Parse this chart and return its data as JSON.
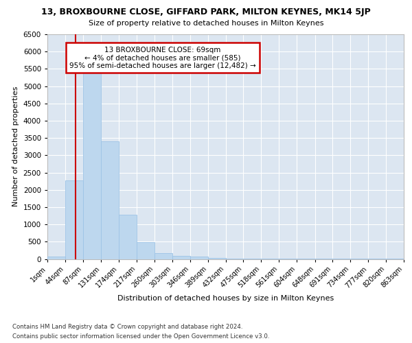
{
  "title": "13, BROXBOURNE CLOSE, GIFFARD PARK, MILTON KEYNES, MK14 5JP",
  "subtitle": "Size of property relative to detached houses in Milton Keynes",
  "xlabel": "Distribution of detached houses by size in Milton Keynes",
  "ylabel": "Number of detached properties",
  "footer_line1": "Contains HM Land Registry data © Crown copyright and database right 2024.",
  "footer_line2": "Contains public sector information licensed under the Open Government Licence v3.0.",
  "annotation_line1": "13 BROXBOURNE CLOSE: 69sqm",
  "annotation_line2": "← 4% of detached houses are smaller (585)",
  "annotation_line3": "95% of semi-detached houses are larger (12,482) →",
  "property_size": 69,
  "bar_edges": [
    1,
    44,
    87,
    131,
    174,
    217,
    260,
    303,
    346,
    389,
    432,
    475,
    518,
    561,
    604,
    648,
    691,
    734,
    777,
    820,
    863
  ],
  "bar_heights": [
    70,
    2270,
    5430,
    3400,
    1290,
    480,
    160,
    80,
    60,
    30,
    15,
    10,
    8,
    5,
    4,
    3,
    2,
    2,
    2,
    2
  ],
  "bar_color": "#bdd7ee",
  "bar_edgecolor": "#9dc3e6",
  "redline_x": 69,
  "annotation_box_color": "#ffffff",
  "annotation_box_edgecolor": "#cc0000",
  "redline_color": "#cc0000",
  "ylim": [
    0,
    6500
  ],
  "background_color": "#ffffff",
  "plot_background": "#dce6f1",
  "grid_color": "#ffffff",
  "tick_labels": [
    "1sqm",
    "44sqm",
    "87sqm",
    "131sqm",
    "174sqm",
    "217sqm",
    "260sqm",
    "303sqm",
    "346sqm",
    "389sqm",
    "432sqm",
    "475sqm",
    "518sqm",
    "561sqm",
    "604sqm",
    "648sqm",
    "691sqm",
    "734sqm",
    "777sqm",
    "820sqm",
    "863sqm"
  ],
  "title_fontsize": 9,
  "subtitle_fontsize": 8,
  "ylabel_fontsize": 8,
  "xlabel_fontsize": 8,
  "ytick_fontsize": 7.5,
  "xtick_fontsize": 7
}
